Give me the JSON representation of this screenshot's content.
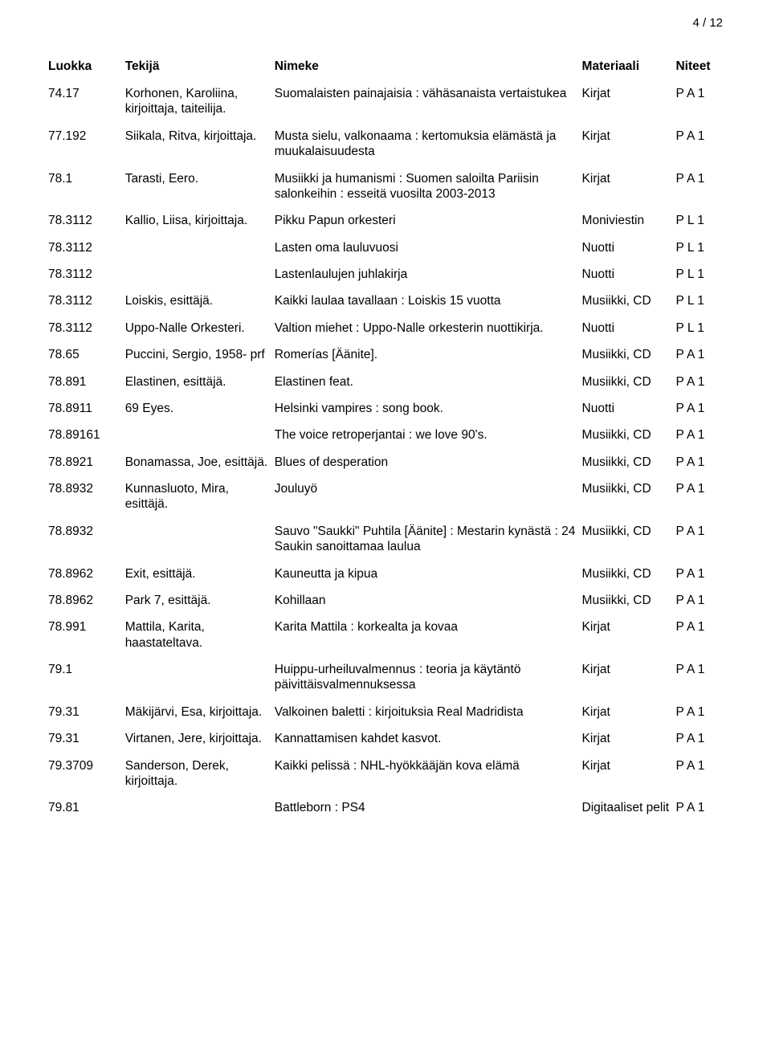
{
  "page_indicator": "4 / 12",
  "columns": {
    "luokka": "Luokka",
    "tekija": "Tekijä",
    "nimeke": "Nimeke",
    "materiaali": "Materiaali",
    "niteet": "Niteet"
  },
  "rows": [
    {
      "luokka": "74.17",
      "tekija": "Korhonen, Karoliina, kirjoittaja, taiteilija.",
      "nimeke": "Suomalaisten painajaisia : vähäsanaista vertaistukea",
      "materiaali": "Kirjat",
      "niteet": "P A 1"
    },
    {
      "luokka": "77.192",
      "tekija": "Siikala, Ritva, kirjoittaja.",
      "nimeke": "Musta sielu, valkonaama : kertomuksia elämästä ja muukalaisuudesta",
      "materiaali": "Kirjat",
      "niteet": "P A 1"
    },
    {
      "luokka": "78.1",
      "tekija": "Tarasti, Eero.",
      "nimeke": "Musiikki ja humanismi : Suomen saloilta Pariisin salonkeihin : esseitä vuosilta 2003-2013",
      "materiaali": "Kirjat",
      "niteet": "P A 1"
    },
    {
      "luokka": "78.3112",
      "tekija": "Kallio, Liisa, kirjoittaja.",
      "nimeke": "Pikku Papun orkesteri",
      "materiaali": "Moniviestin",
      "niteet": "P L 1"
    },
    {
      "luokka": "78.3112",
      "tekija": "",
      "nimeke": "Lasten oma lauluvuosi",
      "materiaali": "Nuotti",
      "niteet": "P L 1"
    },
    {
      "luokka": "78.3112",
      "tekija": "",
      "nimeke": "Lastenlaulujen juhlakirja",
      "materiaali": "Nuotti",
      "niteet": "P L 1"
    },
    {
      "luokka": "78.3112",
      "tekija": "Loiskis, esittäjä.",
      "nimeke": "Kaikki laulaa tavallaan : Loiskis 15 vuotta",
      "materiaali": "Musiikki, CD",
      "niteet": "P L 1"
    },
    {
      "luokka": "78.3112",
      "tekija": "Uppo-Nalle Orkesteri.",
      "nimeke": "Valtion miehet : Uppo-Nalle orkesterin nuottikirja.",
      "materiaali": "Nuotti",
      "niteet": "P L 1"
    },
    {
      "luokka": "78.65",
      "tekija": "Puccini, Sergio, 1958- prf",
      "nimeke": "Romerías [Äänite].",
      "materiaali": "Musiikki, CD",
      "niteet": "P A 1"
    },
    {
      "luokka": "78.891",
      "tekija": "Elastinen, esittäjä.",
      "nimeke": "Elastinen feat.",
      "materiaali": "Musiikki, CD",
      "niteet": "P A 1"
    },
    {
      "luokka": "78.8911",
      "tekija": "69 Eyes.",
      "nimeke": "Helsinki vampires : song book.",
      "materiaali": "Nuotti",
      "niteet": "P A 1"
    },
    {
      "luokka": "78.89161",
      "tekija": "",
      "nimeke": "The voice retroperjantai : we love 90's.",
      "materiaali": "Musiikki, CD",
      "niteet": "P A 1"
    },
    {
      "luokka": "78.8921",
      "tekija": "Bonamassa, Joe, esittäjä.",
      "nimeke": "Blues of desperation",
      "materiaali": "Musiikki, CD",
      "niteet": "P A 1"
    },
    {
      "luokka": "78.8932",
      "tekija": "Kunnasluoto, Mira, esittäjä.",
      "nimeke": "Jouluyö",
      "materiaali": "Musiikki, CD",
      "niteet": "P A 1"
    },
    {
      "luokka": "78.8932",
      "tekija": "",
      "nimeke": "Sauvo \"Saukki\" Puhtila [Äänite] : Mestarin kynästä : 24 Saukin sanoittamaa laulua",
      "materiaali": "Musiikki, CD",
      "niteet": "P A 1"
    },
    {
      "luokka": "78.8962",
      "tekija": "Exit, esittäjä.",
      "nimeke": "Kauneutta ja kipua",
      "materiaali": "Musiikki, CD",
      "niteet": "P A 1"
    },
    {
      "luokka": "78.8962",
      "tekija": "Park 7, esittäjä.",
      "nimeke": "Kohillaan",
      "materiaali": "Musiikki, CD",
      "niteet": "P A 1"
    },
    {
      "luokka": "78.991",
      "tekija": "Mattila, Karita, haastateltava.",
      "nimeke": "Karita Mattila : korkealta ja kovaa",
      "materiaali": "Kirjat",
      "niteet": "P A 1"
    },
    {
      "luokka": "79.1",
      "tekija": "",
      "nimeke": "Huippu-urheiluvalmennus : teoria ja käytäntö päivittäisvalmennuksessa",
      "materiaali": "Kirjat",
      "niteet": "P A 1"
    },
    {
      "luokka": "79.31",
      "tekija": "Mäkijärvi, Esa, kirjoittaja.",
      "nimeke": "Valkoinen baletti : kirjoituksia Real Madridista",
      "materiaali": "Kirjat",
      "niteet": "P A 1"
    },
    {
      "luokka": "79.31",
      "tekija": "Virtanen, Jere, kirjoittaja.",
      "nimeke": "Kannattamisen kahdet kasvot.",
      "materiaali": "Kirjat",
      "niteet": "P A 1"
    },
    {
      "luokka": "79.3709",
      "tekija": "Sanderson, Derek, kirjoittaja.",
      "nimeke": "Kaikki pelissä : NHL-hyökkääjän kova elämä",
      "materiaali": "Kirjat",
      "niteet": "P A 1"
    },
    {
      "luokka": "79.81",
      "tekija": "",
      "nimeke": "Battleborn : PS4",
      "materiaali": "Digitaaliset pelit",
      "niteet": "P A 1"
    }
  ]
}
